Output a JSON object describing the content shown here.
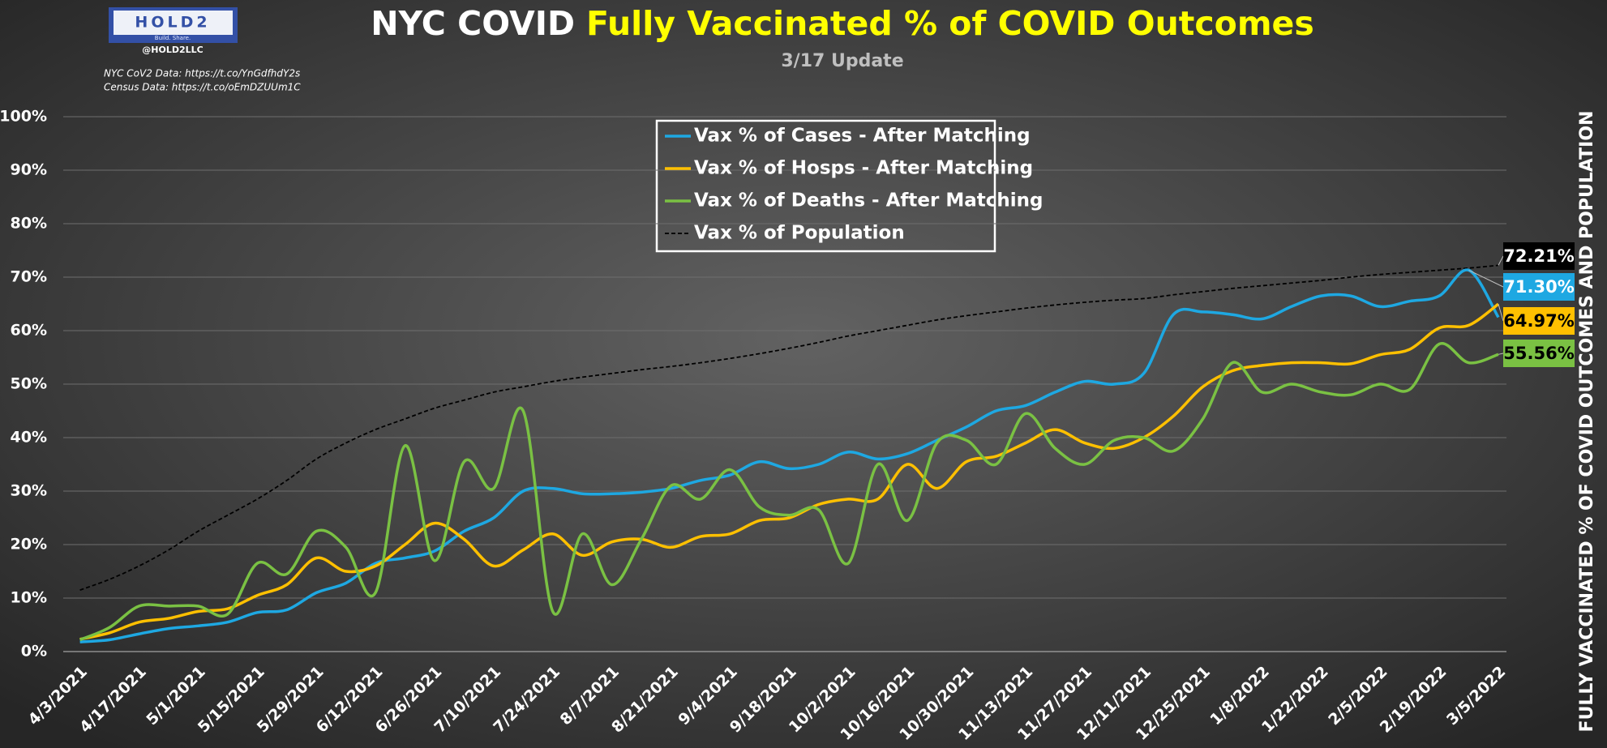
{
  "chart_data": {
    "type": "line",
    "title_parts": [
      "NYC COVID",
      "Fully Vaccinated % of COVID Outcomes"
    ],
    "subtitle": "3/17 Update",
    "logo": {
      "name": "HOLD2",
      "tagline": "Build. Share.",
      "handle": "@HOLD2LLC"
    },
    "sources": [
      "NYC CoV2 Data: https://t.co/YnGdfhdY2s",
      "Census Data: https://t.co/oEmDZUUm1C"
    ],
    "y_label": "FULLY VACCINATED % OF COVID OUTCOMES AND POPULATION",
    "categories": [
      "4/3/2021",
      null,
      "4/17/2021",
      null,
      "5/1/2021",
      null,
      "5/15/2021",
      null,
      "5/29/2021",
      null,
      "6/12/2021",
      null,
      "6/26/2021",
      null,
      "7/10/2021",
      null,
      "7/24/2021",
      null,
      "8/7/2021",
      null,
      "8/21/2021",
      null,
      "9/4/2021",
      null,
      "9/18/2021",
      null,
      "10/2/2021",
      null,
      "10/16/2021",
      null,
      "10/30/2021",
      null,
      "11/13/2021",
      null,
      "11/27/2021",
      null,
      "12/11/2021",
      null,
      "12/25/2021",
      null,
      "1/8/2022",
      null,
      "1/22/2022",
      null,
      "2/5/2022",
      null,
      "2/19/2022",
      null,
      "3/5/2022"
    ],
    "series": [
      {
        "name": "Vax % of Cases - After Matching",
        "color": "#1ea8e2",
        "dashed": false,
        "values": [
          1.8,
          2.2,
          3.3,
          4.3,
          4.8,
          5.5,
          7.3,
          7.8,
          11,
          12.8,
          16.5,
          17.5,
          18.8,
          22.5,
          25,
          30,
          30.5,
          29.5,
          29.5,
          29.8,
          30.5,
          32,
          33,
          35.5,
          34.2,
          35,
          37.3,
          36,
          37,
          39.5,
          42,
          45,
          46,
          48.5,
          50.5,
          50,
          52,
          63,
          63.5,
          63,
          62.2,
          64.5,
          66.5,
          66.5,
          64.5,
          65.5,
          66.5,
          71.3,
          62.5
        ],
        "value_labels": [
          null,
          null,
          null,
          null,
          null,
          null,
          null,
          null,
          null,
          null,
          null,
          null,
          null,
          null,
          null,
          null,
          null,
          null,
          null,
          null,
          null,
          null,
          null,
          null,
          null,
          null,
          null,
          null,
          null,
          null,
          null,
          null,
          null,
          null,
          null,
          null,
          null,
          null,
          null,
          null,
          null,
          null,
          null,
          null,
          null,
          null,
          null,
          "71.30%",
          null
        ]
      },
      {
        "name": "Vax % of Hosps - After Matching",
        "color": "#ffc000",
        "dashed": false,
        "values": [
          2.3,
          3.5,
          5.5,
          6.2,
          7.5,
          8,
          10.5,
          12.5,
          17.5,
          15,
          16,
          20,
          24,
          21,
          16,
          19,
          22,
          18,
          20.5,
          21,
          19.5,
          21.5,
          22,
          24.5,
          25,
          27.5,
          28.5,
          28.5,
          35,
          30.5,
          35.5,
          36.5,
          39,
          41.5,
          39,
          38,
          40,
          44,
          49.5,
          52.5,
          53.5,
          54,
          54,
          53.8,
          55.5,
          56.5,
          60.5,
          61,
          64.97
        ],
        "value_labels": [
          null,
          null,
          null,
          null,
          null,
          null,
          null,
          null,
          null,
          null,
          null,
          null,
          null,
          null,
          null,
          null,
          null,
          null,
          null,
          null,
          null,
          null,
          null,
          null,
          null,
          null,
          null,
          null,
          null,
          null,
          null,
          null,
          null,
          null,
          null,
          null,
          null,
          null,
          null,
          null,
          null,
          null,
          null,
          null,
          null,
          null,
          null,
          null,
          "64.97%"
        ]
      },
      {
        "name": "Vax % of Deaths - After Matching",
        "color": "#7ac143",
        "dashed": false,
        "values": [
          2.2,
          4.5,
          8.5,
          8.5,
          8.5,
          7,
          16.5,
          14.5,
          22.5,
          19.5,
          11,
          38.5,
          17,
          35.5,
          30.5,
          45,
          7.5,
          22,
          12.5,
          21,
          31,
          28.5,
          34,
          27,
          25.5,
          26.5,
          16.5,
          35,
          24.5,
          39,
          39.5,
          35,
          44.5,
          38,
          35,
          39.5,
          40,
          37.5,
          43.5,
          54,
          48.5,
          50,
          48.5,
          48,
          50,
          49,
          57.5,
          54,
          55.56
        ],
        "value_labels": [
          null,
          null,
          null,
          null,
          null,
          null,
          null,
          null,
          null,
          null,
          null,
          null,
          null,
          null,
          null,
          null,
          null,
          null,
          null,
          null,
          null,
          null,
          null,
          null,
          null,
          null,
          null,
          null,
          null,
          null,
          null,
          null,
          null,
          null,
          null,
          null,
          null,
          null,
          null,
          null,
          null,
          null,
          null,
          null,
          null,
          null,
          null,
          null,
          "55.56%"
        ]
      },
      {
        "name": "Vax % of Population",
        "color": "#000000",
        "dashed": true,
        "values": [
          11.5,
          13.5,
          16,
          19,
          22.5,
          25.5,
          28.5,
          32,
          36,
          39,
          41.5,
          43.5,
          45.5,
          47,
          48.5,
          49.5,
          50.5,
          51.3,
          52,
          52.7,
          53.3,
          54,
          54.8,
          55.7,
          56.7,
          57.8,
          59,
          60,
          61,
          62,
          62.8,
          63.5,
          64.2,
          64.8,
          65.3,
          65.7,
          66,
          66.7,
          67.3,
          67.9,
          68.4,
          68.9,
          69.4,
          70,
          70.5,
          70.9,
          71.3,
          71.7,
          72.21
        ],
        "value_labels": [
          null,
          null,
          null,
          null,
          null,
          null,
          null,
          null,
          null,
          null,
          null,
          null,
          null,
          null,
          null,
          null,
          null,
          null,
          null,
          null,
          null,
          null,
          null,
          null,
          null,
          null,
          null,
          null,
          null,
          null,
          null,
          null,
          null,
          null,
          null,
          null,
          null,
          null,
          null,
          null,
          null,
          null,
          null,
          null,
          null,
          null,
          null,
          null,
          "72.21%"
        ]
      }
    ],
    "ylim": [
      0,
      100
    ],
    "yticks": [
      {
        "value": 0,
        "label": "0%"
      },
      {
        "value": 10,
        "label": "10%"
      },
      {
        "value": 20,
        "label": "20%"
      },
      {
        "value": 30,
        "label": "30%"
      },
      {
        "value": 40,
        "label": "40%"
      },
      {
        "value": 50,
        "label": "50%"
      },
      {
        "value": 60,
        "label": "60%"
      },
      {
        "value": 70,
        "label": "70%"
      },
      {
        "value": 80,
        "label": "80%"
      },
      {
        "value": 90,
        "label": "90%"
      },
      {
        "value": 100,
        "label": "100%"
      }
    ],
    "grid": true,
    "legend": "top"
  }
}
